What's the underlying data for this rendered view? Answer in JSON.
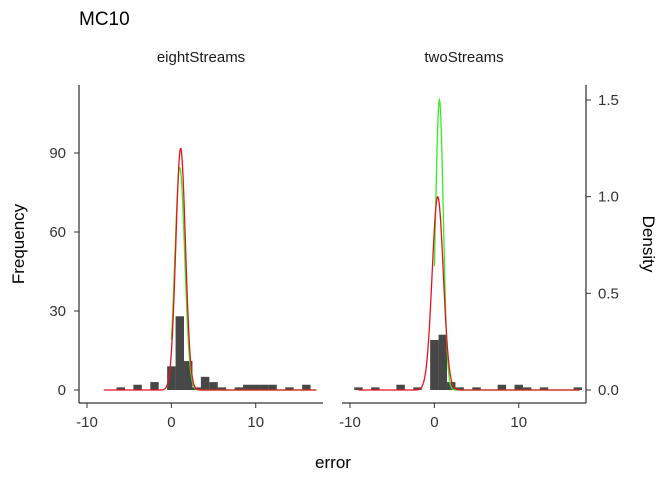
{
  "chart_data": {
    "type": "bar",
    "title": "MC10",
    "xlabel": "error",
    "ylabel": "Frequency",
    "ylabel_right": "Density",
    "x_ticks": [
      "-10",
      "0",
      "10"
    ],
    "y_ticks": [
      "0",
      "30",
      "60",
      "90"
    ],
    "y_ticks_right": [
      "0.0",
      "0.5",
      "1.0",
      "1.5"
    ],
    "x_range": [
      -10,
      17.5
    ],
    "y_range": [
      0,
      112
    ],
    "y_right_range": [
      0,
      1.5
    ],
    "bin_width": 1,
    "density_curve_colors": {
      "fit_a": "#33ee22",
      "fit_b": "#e8121b"
    },
    "bar_color": "#474747",
    "panels": [
      {
        "name": "eightStreams",
        "bins": [
          {
            "x": -6,
            "count": 1
          },
          {
            "x": -4,
            "count": 2
          },
          {
            "x": -2,
            "count": 3
          },
          {
            "x": 0,
            "count": 9
          },
          {
            "x": 1,
            "count": 28
          },
          {
            "x": 2,
            "count": 11
          },
          {
            "x": 3,
            "count": 1
          },
          {
            "x": 4,
            "count": 5
          },
          {
            "x": 5,
            "count": 3
          },
          {
            "x": 6,
            "count": 1
          },
          {
            "x": 8,
            "count": 1
          },
          {
            "x": 9,
            "count": 2
          },
          {
            "x": 10,
            "count": 2
          },
          {
            "x": 11,
            "count": 2
          },
          {
            "x": 12,
            "count": 2
          },
          {
            "x": 14,
            "count": 1
          },
          {
            "x": 16,
            "count": 2
          }
        ],
        "curves": [
          {
            "color": "#33ee22",
            "mean": 1.0,
            "sd": 0.58,
            "peak_density": 1.15,
            "start": 0
          },
          {
            "color": "#e8121b",
            "mean": 1.1,
            "sd": 0.57,
            "peak_density": 1.25,
            "start": -8
          }
        ]
      },
      {
        "name": "twoStreams",
        "bins": [
          {
            "x": -9,
            "count": 1
          },
          {
            "x": -7,
            "count": 1
          },
          {
            "x": -4,
            "count": 2
          },
          {
            "x": -2,
            "count": 1
          },
          {
            "x": 0,
            "count": 19
          },
          {
            "x": 1,
            "count": 21
          },
          {
            "x": 2,
            "count": 3
          },
          {
            "x": 3,
            "count": 1
          },
          {
            "x": 5,
            "count": 1
          },
          {
            "x": 8,
            "count": 2
          },
          {
            "x": 10,
            "count": 2
          },
          {
            "x": 11,
            "count": 1
          },
          {
            "x": 13,
            "count": 1
          },
          {
            "x": 17,
            "count": 1
          }
        ],
        "curves": [
          {
            "color": "#33ee22",
            "mean": 0.6,
            "sd": 0.46,
            "peak_density": 1.5,
            "start": 0
          },
          {
            "color": "#e8121b",
            "mean": 0.4,
            "sd": 0.66,
            "peak_density": 1.0,
            "start": -9
          }
        ]
      }
    ]
  }
}
